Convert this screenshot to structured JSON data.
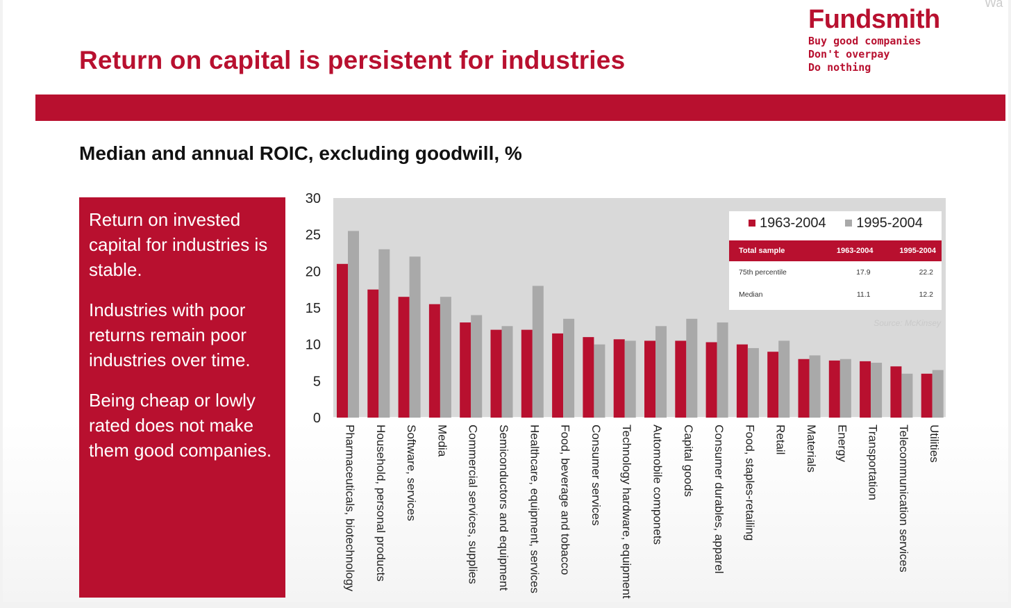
{
  "header": {
    "title": "Return on capital is persistent for industries",
    "brand": "Fundsmith",
    "tagline": [
      "Buy good companies",
      "Don't overpay",
      "Do nothing"
    ],
    "corner_mark": "Wa"
  },
  "subtitle": "Median and annual ROIC, excluding goodwill, %",
  "side_panel": {
    "paragraphs": [
      "Return on invested capital for industries is stable.",
      "Industries with poor returns remain poor industries over time.",
      "Being cheap or lowly rated does not make them good companies."
    ]
  },
  "colors": {
    "accent": "#b8102f",
    "series_gray": "#a9a9a9",
    "plot_bg": "#d9d9d9"
  },
  "inset": {
    "headers": [
      "Total sample",
      "1963-2004",
      "1995-2004"
    ],
    "rows": [
      [
        "75th percentile",
        "17.9",
        "22.2"
      ],
      [
        "Median",
        "11.1",
        "12.2"
      ]
    ],
    "source": "Source: McKinsey"
  },
  "chart_data": {
    "type": "bar",
    "categories": [
      "Pharmaceuticals, biotechnology",
      "Household, personal products",
      "Software, services",
      "Media",
      "Commercial services, supplies",
      "Semiconductors and equipment",
      "Healthcare, equipment, services",
      "Food, beverage and tobacco",
      "Consumer services",
      "Technology hardware, equipment",
      "Automobile componets",
      "Capital goods",
      "Consumer durables, apparel",
      "Food, staples-retailing",
      "Retail",
      "Materials",
      "Energy",
      "Transportation",
      "Telecommunication services",
      "Utilities"
    ],
    "series": [
      {
        "name": "1963-2004",
        "color": "#b8102f",
        "values": [
          21,
          17.5,
          16.5,
          15.5,
          13,
          12,
          12,
          11.5,
          11,
          10.7,
          10.5,
          10.5,
          10.3,
          10,
          9,
          8,
          7.8,
          7.7,
          7,
          6
        ]
      },
      {
        "name": "1995-2004",
        "color": "#a9a9a9",
        "values": [
          25.5,
          23,
          22,
          16.5,
          14,
          12.5,
          18,
          13.5,
          10,
          10.5,
          12.5,
          13.5,
          13,
          9.5,
          10.5,
          8.5,
          8,
          7.5,
          6,
          6.5
        ]
      }
    ],
    "ylim": [
      0,
      30
    ],
    "yticks": [
      0,
      5,
      10,
      15,
      20,
      25,
      30
    ],
    "grid": false,
    "legend": "top-right"
  }
}
